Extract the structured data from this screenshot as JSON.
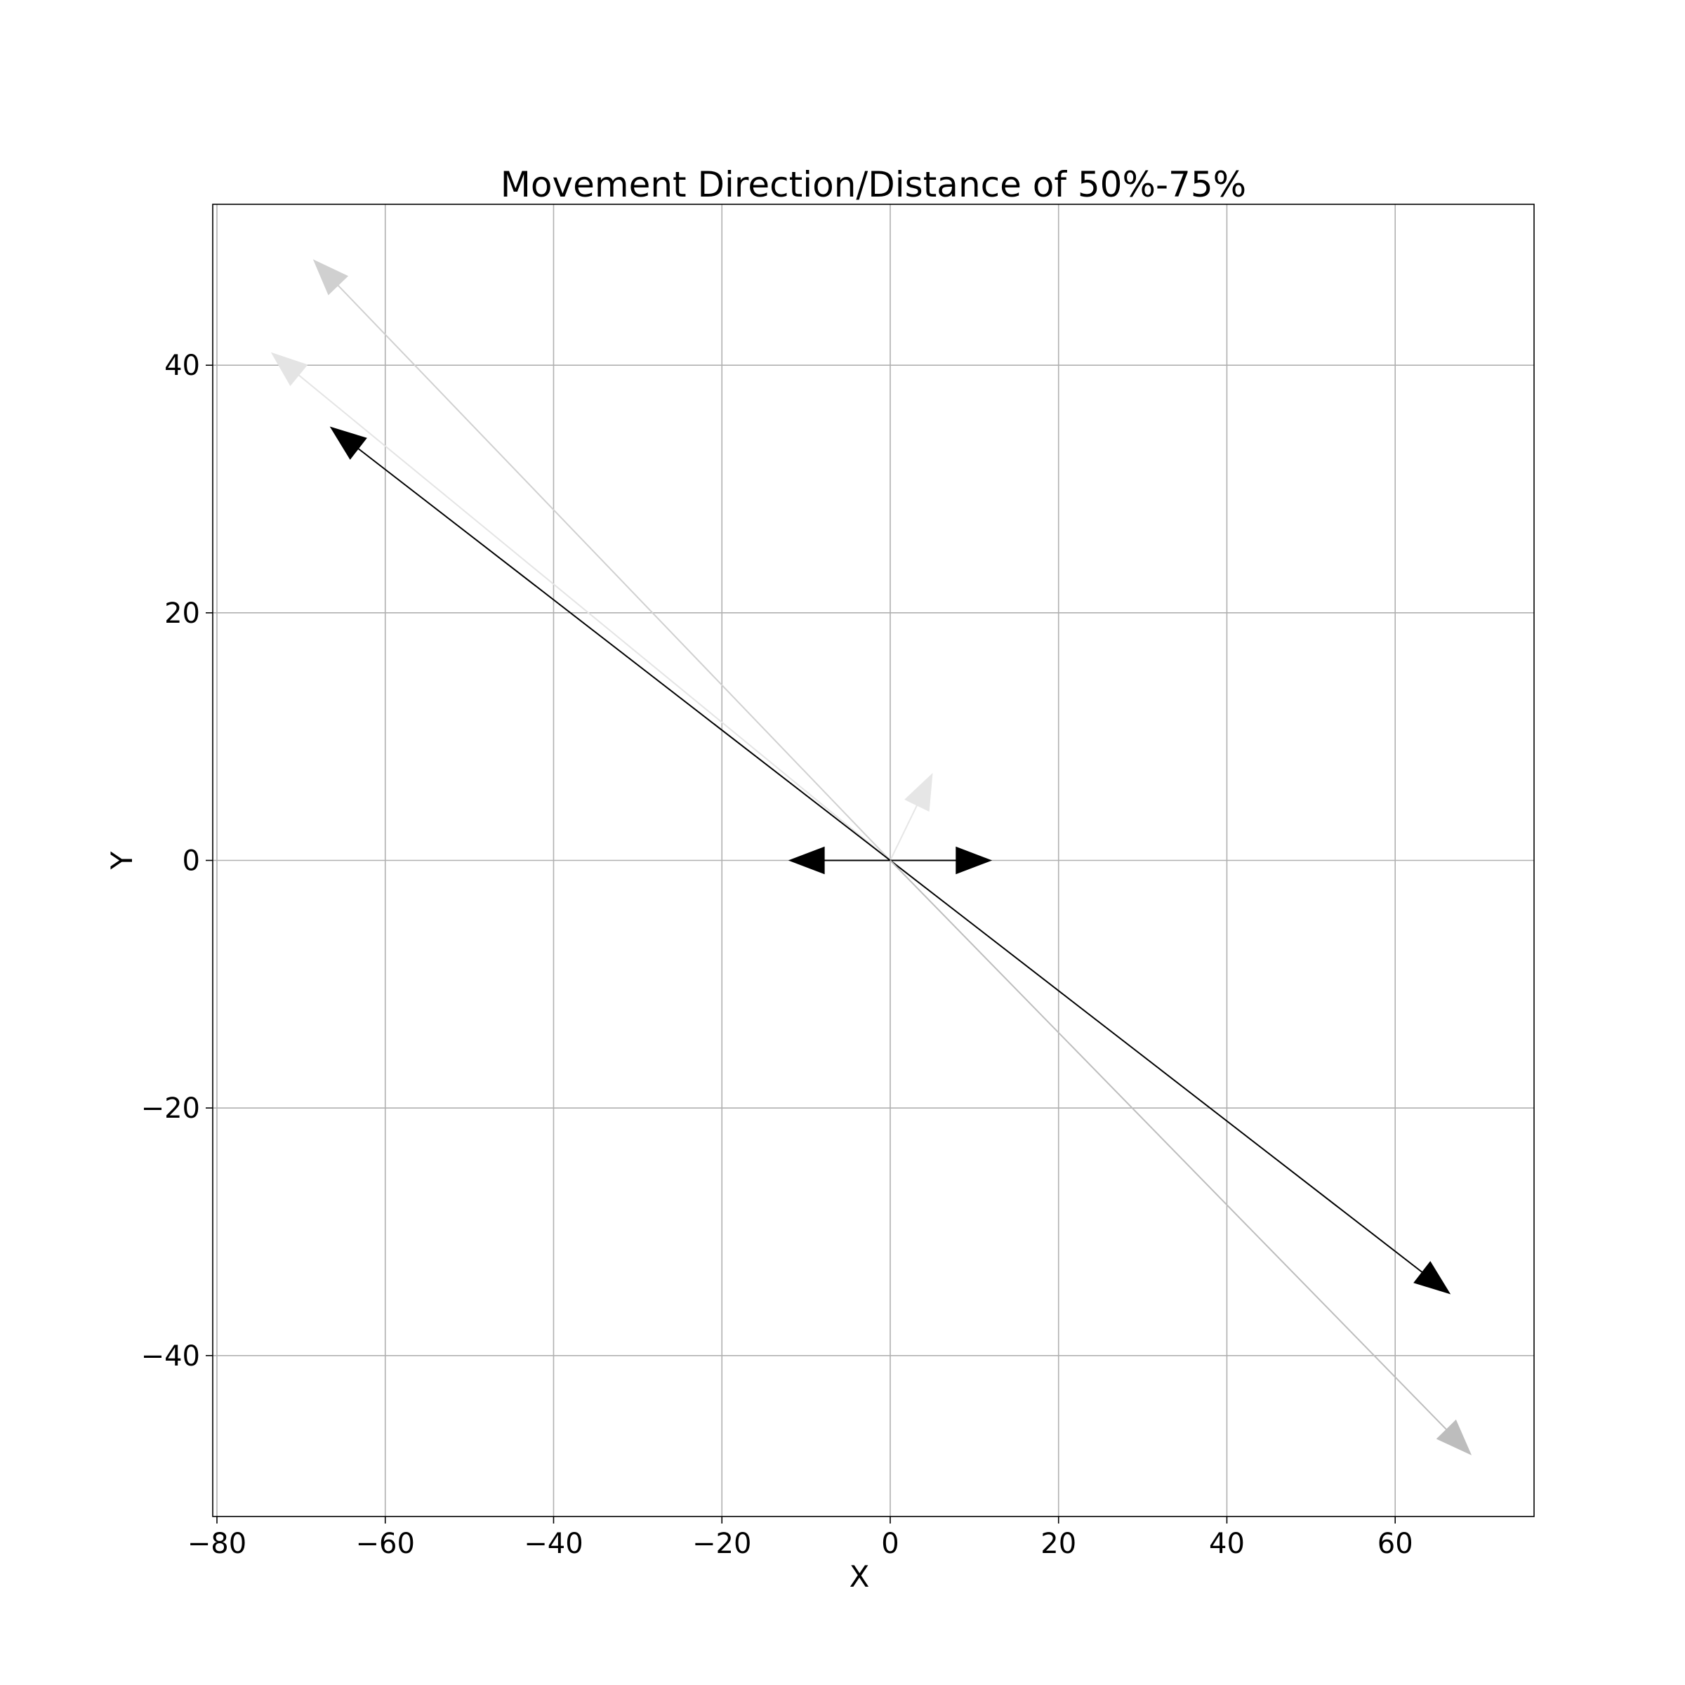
{
  "chart_data": {
    "type": "quiver",
    "title": "Movement Direction/Distance of 50%-75%",
    "xlabel": "X",
    "ylabel": "Y",
    "xlim": [
      -80.5,
      76.5
    ],
    "ylim": [
      -53,
      53
    ],
    "xticks": [
      -80,
      -60,
      -40,
      -20,
      0,
      20,
      40,
      60
    ],
    "yticks": [
      -40,
      -20,
      0,
      20,
      40
    ],
    "xtick_labels": [
      "−80",
      "−60",
      "−40",
      "−20",
      "0",
      "20",
      "40",
      "60"
    ],
    "ytick_labels": [
      "−40",
      "−20",
      "0",
      "20",
      "40"
    ],
    "grid": true,
    "origin": [
      0,
      0
    ],
    "vectors": [
      {
        "dx": -68.5,
        "dy": 48.5,
        "color": "#d0d0d0"
      },
      {
        "dx": -73.5,
        "dy": 41.0,
        "color": "#e4e4e4"
      },
      {
        "dx": -66.5,
        "dy": 35.0,
        "color": "#000000"
      },
      {
        "dx": 5.0,
        "dy": 7.0,
        "color": "#e6e6e6"
      },
      {
        "dx": -12.0,
        "dy": 0.0,
        "color": "#000000"
      },
      {
        "dx": 12.0,
        "dy": 0.0,
        "color": "#000000"
      },
      {
        "dx": 66.5,
        "dy": -35.0,
        "color": "#000000"
      },
      {
        "dx": 69.0,
        "dy": -48.0,
        "color": "#bdbdbd"
      }
    ]
  }
}
